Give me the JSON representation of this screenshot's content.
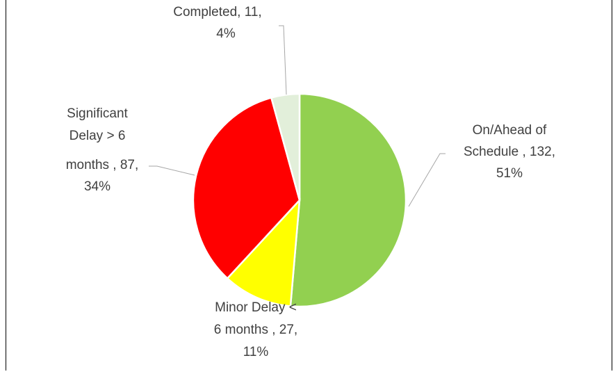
{
  "chart_data": {
    "type": "pie",
    "values": [
      132,
      27,
      87,
      11
    ],
    "value_labels": [
      [
        "On/Ahead of",
        "Schedule , 132,",
        "51%"
      ],
      [
        "Minor Delay <",
        "6 months , 27,",
        "11%"
      ],
      [
        "Significant",
        "Delay > 6",
        "months , 87,",
        "34%"
      ],
      [
        "Completed, 11,",
        "4%"
      ]
    ],
    "colors": [
      "#92d050",
      "#ffff00",
      "#ff0000",
      "#e2efda"
    ]
  }
}
